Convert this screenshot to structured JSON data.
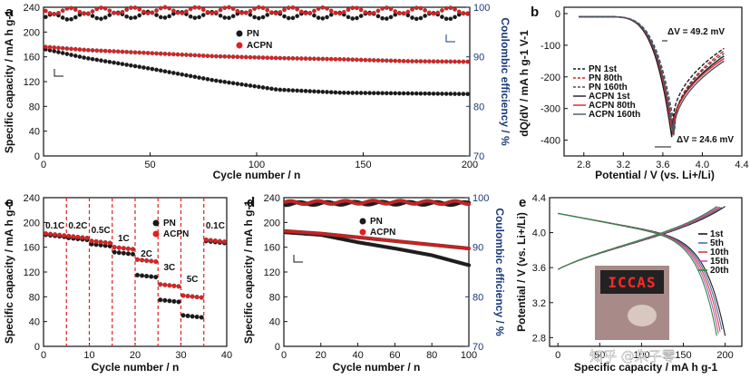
{
  "chart_data": [
    {
      "panel": "a",
      "type": "scatter",
      "xlabel": "Cycle number / n",
      "ylabel": "Specific capacity / mA h g-1",
      "y2label": "Coulombic efficiency / %",
      "xlim": [
        0,
        200
      ],
      "ylim": [
        0,
        240
      ],
      "y2lim": [
        70,
        100
      ],
      "xticks": [
        "0",
        "50",
        "100",
        "150",
        "200"
      ],
      "yticks": [
        "0",
        "40",
        "80",
        "120",
        "160",
        "200",
        "240"
      ],
      "y2ticks": [
        "70",
        "80",
        "90",
        "100"
      ],
      "legend": [
        "PN",
        "ACPN"
      ],
      "series": [
        {
          "name": "PN capacity",
          "color": "#1a1a1a",
          "points": [
            [
              1,
              172
            ],
            [
              20,
              158
            ],
            [
              50,
              141
            ],
            [
              80,
              122
            ],
            [
              110,
              107
            ],
            [
              140,
              102
            ],
            [
              170,
              101
            ],
            [
              200,
              100
            ]
          ]
        },
        {
          "name": "ACPN capacity",
          "color": "#e02020",
          "points": [
            [
              1,
              176
            ],
            [
              20,
              171
            ],
            [
              50,
              166
            ],
            [
              80,
              161
            ],
            [
              110,
              158
            ],
            [
              140,
              156
            ],
            [
              170,
              153
            ],
            [
              200,
              152
            ]
          ]
        },
        {
          "name": "PN efficiency",
          "color": "#1a1a1a",
          "points": [
            [
              1,
              98
            ],
            [
              50,
              98.5
            ],
            [
              100,
              98.4
            ],
            [
              150,
              98.3
            ],
            [
              200,
              98.2
            ]
          ]
        },
        {
          "name": "ACPN efficiency",
          "color": "#e02020",
          "points": [
            [
              1,
              99.2
            ],
            [
              50,
              99.4
            ],
            [
              100,
              99.4
            ],
            [
              150,
              99.3
            ],
            [
              200,
              99.3
            ]
          ]
        }
      ]
    },
    {
      "panel": "b",
      "type": "line",
      "xlabel": "Potential / V (vs. Li+/Li)",
      "ylabel": "dQ/dV / mA h g-1 V-1",
      "xlim": [
        2.6,
        4.4
      ],
      "ylim": [
        -450,
        20
      ],
      "xticks": [
        "2.8",
        "3.2",
        "3.6",
        "4.0",
        "4.4"
      ],
      "yticks": [
        "-400",
        "-300",
        "-200",
        "-100",
        "0"
      ],
      "annotations": [
        "ΔV = 49.2 mV",
        "ΔV = 24.6 mV"
      ],
      "series": [
        {
          "name": "PN 1st",
          "color": "#1a1a1a",
          "dash": true,
          "peak": [
            3.7,
            -355
          ]
        },
        {
          "name": "PN 80th",
          "color": "#e02020",
          "dash": true,
          "peak": [
            3.71,
            -375
          ]
        },
        {
          "name": "PN 160th",
          "color": "#445566",
          "dash": true,
          "peak": [
            3.72,
            -365
          ]
        },
        {
          "name": "ACPN 1st",
          "color": "#1a1a1a",
          "dash": false,
          "peak": [
            3.69,
            -390
          ]
        },
        {
          "name": "ACPN 80th",
          "color": "#e02020",
          "dash": false,
          "peak": [
            3.7,
            -380
          ]
        },
        {
          "name": "ACPN 160th",
          "color": "#445566",
          "dash": false,
          "peak": [
            3.71,
            -385
          ]
        }
      ]
    },
    {
      "panel": "c",
      "type": "scatter",
      "xlabel": "Cycle number / n",
      "ylabel": "Specific capacity / mA h g-1",
      "xlim": [
        0,
        40
      ],
      "ylim": [
        0,
        240
      ],
      "xticks": [
        "0",
        "10",
        "20",
        "30",
        "40"
      ],
      "yticks": [
        "0",
        "40",
        "80",
        "120",
        "160",
        "200",
        "240"
      ],
      "legend": [
        "PN",
        "ACPN"
      ],
      "rates": [
        "0.1C",
        "0.2C",
        "0.5C",
        "1C",
        "2C",
        "3C",
        "5C",
        "0.1C"
      ],
      "series": [
        {
          "name": "PN",
          "color": "#1a1a1a",
          "values": [
            180,
            175,
            165,
            152,
            115,
            75,
            50,
            170
          ]
        },
        {
          "name": "ACPN",
          "color": "#e02020",
          "values": [
            182,
            178,
            170,
            160,
            140,
            100,
            82,
            172
          ]
        }
      ]
    },
    {
      "panel": "d",
      "type": "scatter",
      "xlabel": "Cycle number / n",
      "ylabel": "Specific capacity / mA h g-1",
      "y2label": "Coulombic efficiency / %",
      "xlim": [
        0,
        100
      ],
      "ylim": [
        0,
        240
      ],
      "y2lim": [
        70,
        100
      ],
      "xticks": [
        "0",
        "20",
        "40",
        "60",
        "80",
        "100"
      ],
      "yticks": [
        "0",
        "40",
        "80",
        "120",
        "160",
        "200",
        "240"
      ],
      "y2ticks": [
        "70",
        "80",
        "90",
        "100"
      ],
      "legend": [
        "PN",
        "ACPN"
      ],
      "series": [
        {
          "name": "PN capacity",
          "color": "#1a1a1a",
          "points": [
            [
              1,
              184
            ],
            [
              20,
              180
            ],
            [
              40,
              168
            ],
            [
              60,
              158
            ],
            [
              80,
              147
            ],
            [
              100,
              131
            ]
          ]
        },
        {
          "name": "ACPN capacity",
          "color": "#e02020",
          "points": [
            [
              1,
              186
            ],
            [
              20,
              182
            ],
            [
              40,
              176
            ],
            [
              60,
              170
            ],
            [
              80,
              164
            ],
            [
              100,
              158
            ]
          ]
        },
        {
          "name": "PN efficiency",
          "color": "#1a1a1a",
          "points": [
            [
              1,
              98.8
            ],
            [
              50,
              98.9
            ],
            [
              100,
              98.8
            ]
          ]
        },
        {
          "name": "ACPN efficiency",
          "color": "#e02020",
          "points": [
            [
              1,
              99.0
            ],
            [
              50,
              99.1
            ],
            [
              100,
              99.0
            ]
          ]
        }
      ]
    },
    {
      "panel": "e",
      "type": "line",
      "xlabel": "Specific capacity / mA h g-1",
      "ylabel": "Potential / V (vs. Li+/Li)",
      "xlim": [
        -10,
        220
      ],
      "ylim": [
        2.7,
        4.4
      ],
      "xticks": [
        "0",
        "50",
        "100",
        "150",
        "200"
      ],
      "yticks": [
        "2.8",
        "3.2",
        "3.6",
        "4.0",
        "4.4"
      ],
      "legend": [
        "1st",
        "5th",
        "10th",
        "15th",
        "20th"
      ],
      "colors": [
        "#1a1a1a",
        "#4a6fa8",
        "#d04040",
        "#c050c0",
        "#2a8a3a"
      ],
      "inset_text": "ICCAS"
    }
  ],
  "panel_labels": [
    "a",
    "b",
    "c",
    "d",
    "e"
  ],
  "watermark": "知乎 @朱子零"
}
